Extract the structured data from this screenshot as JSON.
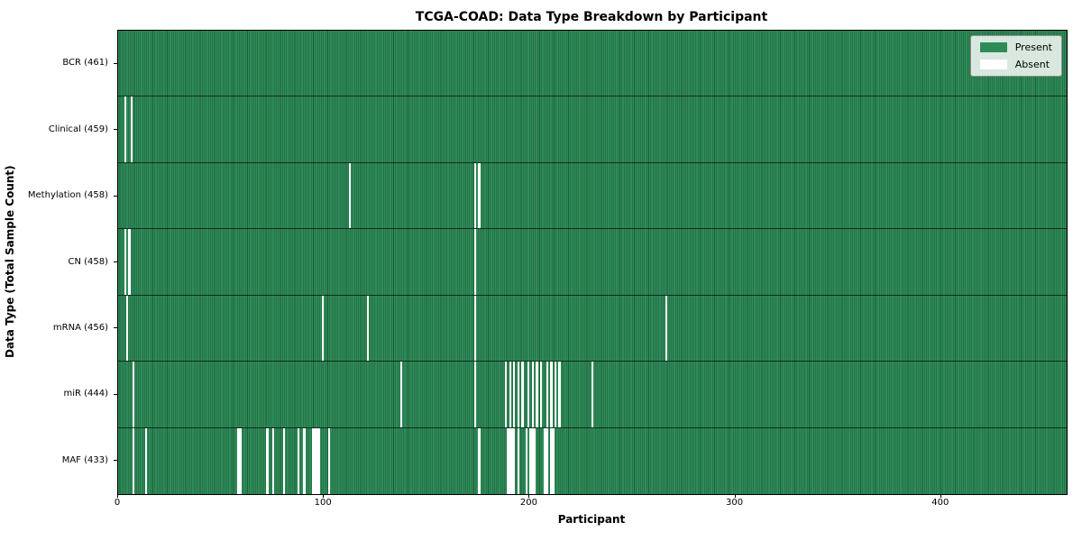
{
  "chart_data": {
    "type": "heatmap",
    "title": "TCGA-COAD: Data Type Breakdown by Participant",
    "xlabel": "Participant",
    "ylabel": "Data Type (Total Sample Count)",
    "n_participants": 461,
    "x_ticks": [
      0,
      100,
      200,
      300,
      400
    ],
    "grid": false,
    "legend_position": "upper right",
    "legend_entries": [
      "Present",
      "Absent"
    ],
    "rows": [
      {
        "data_type": "BCR",
        "label": "BCR (461)",
        "present_count": 461,
        "absent_participants": []
      },
      {
        "data_type": "Clinical",
        "label": "Clinical (459)",
        "present_count": 459,
        "absent_participants": [
          3,
          6
        ]
      },
      {
        "data_type": "Methylation",
        "label": "Methylation (458)",
        "present_count": 458,
        "absent_participants": [
          112,
          173,
          175
        ]
      },
      {
        "data_type": "CN",
        "label": "CN (458)",
        "present_count": 458,
        "absent_participants": [
          3,
          5,
          173
        ]
      },
      {
        "data_type": "mRNA",
        "label": "mRNA (456)",
        "present_count": 456,
        "absent_participants": [
          4,
          99,
          121,
          173,
          266
        ]
      },
      {
        "data_type": "miR",
        "label": "miR (444)",
        "present_count": 444,
        "absent_participants": [
          7,
          137,
          173,
          188,
          190,
          192,
          194,
          196,
          199,
          201,
          203,
          205,
          208,
          210,
          212,
          214,
          230
        ]
      },
      {
        "data_type": "MAF",
        "label": "MAF (433)",
        "present_count": 433,
        "absent_participants": [
          7,
          13,
          58,
          59,
          72,
          75,
          80,
          87,
          90,
          94,
          95,
          96,
          97,
          102,
          175,
          189,
          190,
          191,
          192,
          194,
          198,
          200,
          201,
          202,
          207,
          208,
          210,
          211
        ]
      }
    ]
  },
  "legend": {
    "present_label": "Present",
    "absent_label": "Absent"
  },
  "colors": {
    "present": "#2E8B57",
    "present_edge": "#1e5e3c",
    "absent": "#FFFFFF",
    "legend_bg": "#e9efe9",
    "axis": "#000000"
  }
}
